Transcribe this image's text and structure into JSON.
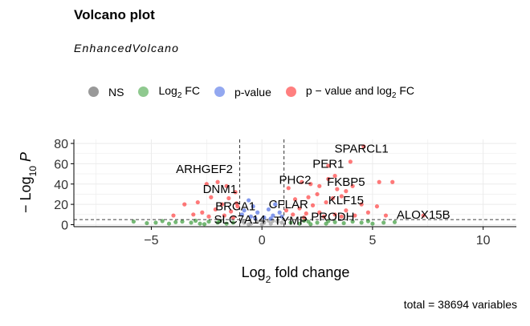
{
  "title": "Volcano plot",
  "subtitle": "EnhancedVolcano",
  "caption": "total = 38694 variables",
  "colors": {
    "ns": "#999999",
    "log2fc": "#3a9a3a",
    "pvalue": "#4f6ee6",
    "both": "#ff2020"
  },
  "chart_data": {
    "type": "scatter",
    "xlabel": "Log2 fold change",
    "ylabel": "-Log10 P",
    "xlim": [
      -8.5,
      11.5
    ],
    "ylim": [
      -2,
      84
    ],
    "x_ticks": [
      -5,
      0,
      5,
      10
    ],
    "y_ticks": [
      0,
      20,
      40,
      60,
      80
    ],
    "grid": true,
    "legend_position": "top",
    "fc_cutoff": 1,
    "p_cutoff_log10": 5,
    "legend": [
      {
        "key": "ns",
        "label": "NS"
      },
      {
        "key": "log2fc",
        "label_main": "Log",
        "label_sub": "2",
        "label_tail": " FC"
      },
      {
        "key": "pvalue",
        "label": "p-value"
      },
      {
        "key": "both",
        "label_main": "p − value and log",
        "label_sub": "2",
        "label_tail": " FC"
      }
    ],
    "labeled_genes": [
      {
        "gene": "SPARCL1",
        "x": 4.5,
        "y": 75
      },
      {
        "gene": "PER1",
        "x": 3.0,
        "y": 60
      },
      {
        "gene": "ARHGEF2",
        "x": -2.6,
        "y": 55
      },
      {
        "gene": "PHC2",
        "x": 1.5,
        "y": 44
      },
      {
        "gene": "FKBP5",
        "x": 3.8,
        "y": 42
      },
      {
        "gene": "DNM1",
        "x": -1.9,
        "y": 35
      },
      {
        "gene": "KLF15",
        "x": 3.8,
        "y": 24
      },
      {
        "gene": "CFLAR",
        "x": 1.2,
        "y": 20
      },
      {
        "gene": "BRCA1",
        "x": -1.2,
        "y": 18
      },
      {
        "gene": "ALOX15B",
        "x": 7.3,
        "y": 10
      },
      {
        "gene": "PRODH",
        "x": 3.2,
        "y": 8
      },
      {
        "gene": "SLC7A14",
        "x": -1.0,
        "y": 5
      },
      {
        "gene": "TYMP",
        "x": 1.3,
        "y": 4
      }
    ],
    "points": {
      "both": [
        [
          4.6,
          77
        ],
        [
          4.0,
          62
        ],
        [
          3.0,
          58
        ],
        [
          3.3,
          48
        ],
        [
          3.0,
          45
        ],
        [
          2.2,
          40
        ],
        [
          1.8,
          42
        ],
        [
          2.6,
          38
        ],
        [
          3.4,
          35
        ],
        [
          5.3,
          42
        ],
        [
          5.9,
          42
        ],
        [
          4.1,
          38
        ],
        [
          3.8,
          33
        ],
        [
          3.6,
          28
        ],
        [
          3.2,
          26
        ],
        [
          2.5,
          30
        ],
        [
          2.1,
          27
        ],
        [
          1.5,
          25
        ],
        [
          2.9,
          22
        ],
        [
          4.5,
          20
        ],
        [
          5.2,
          18
        ],
        [
          2.3,
          19
        ],
        [
          1.7,
          16
        ],
        [
          3.8,
          14
        ],
        [
          4.8,
          12
        ],
        [
          2.6,
          12
        ],
        [
          3.3,
          10
        ],
        [
          2.0,
          11
        ],
        [
          1.4,
          10
        ],
        [
          4.2,
          9
        ],
        [
          5.6,
          9
        ],
        [
          3.6,
          8
        ],
        [
          2.8,
          8
        ],
        [
          1.9,
          7
        ],
        [
          7.3,
          9
        ],
        [
          -2.5,
          40
        ],
        [
          -2.0,
          42
        ],
        [
          -1.6,
          38
        ],
        [
          -1.2,
          32
        ],
        [
          -1.5,
          26
        ],
        [
          -2.3,
          27
        ],
        [
          -2.9,
          22
        ],
        [
          -1.8,
          20
        ],
        [
          -1.1,
          18
        ],
        [
          -3.5,
          20
        ],
        [
          -2.1,
          15
        ],
        [
          -1.4,
          13
        ],
        [
          -2.7,
          12
        ],
        [
          -3.1,
          10
        ],
        [
          -1.7,
          9
        ],
        [
          -2.4,
          8
        ],
        [
          -1.3,
          7
        ],
        [
          -4.0,
          9
        ],
        [
          1.2,
          36
        ],
        [
          1.1,
          14
        ],
        [
          -1.15,
          21
        ]
      ],
      "pvalue": [
        [
          -0.6,
          24
        ],
        [
          -0.4,
          18
        ],
        [
          -0.8,
          14
        ],
        [
          -0.2,
          12
        ],
        [
          0.3,
          15
        ],
        [
          0.6,
          20
        ],
        [
          0.8,
          12
        ],
        [
          0.5,
          9
        ],
        [
          -0.5,
          8
        ],
        [
          0.1,
          7
        ],
        [
          -0.9,
          10
        ],
        [
          0.9,
          8
        ],
        [
          0.4,
          6
        ],
        [
          -0.3,
          6
        ]
      ],
      "log2fc": [
        [
          -5.8,
          3
        ],
        [
          -4.8,
          2
        ],
        [
          -4.2,
          1
        ],
        [
          -3.6,
          3
        ],
        [
          -3.2,
          2
        ],
        [
          -2.8,
          1
        ],
        [
          -2.4,
          3
        ],
        [
          -2.0,
          2
        ],
        [
          -1.6,
          1
        ],
        [
          -1.3,
          2
        ],
        [
          -4.5,
          3.5
        ],
        [
          -5.2,
          1.5
        ],
        [
          -3.9,
          2.5
        ],
        [
          -2.6,
          0.5
        ],
        [
          1.3,
          2
        ],
        [
          1.7,
          1
        ],
        [
          2.1,
          3
        ],
        [
          2.5,
          2
        ],
        [
          2.9,
          1
        ],
        [
          3.3,
          2.5
        ],
        [
          3.7,
          1.5
        ],
        [
          4.1,
          3
        ],
        [
          4.5,
          2
        ],
        [
          5.0,
          1
        ],
        [
          5.5,
          2
        ],
        [
          6.0,
          2.5
        ],
        [
          3.0,
          3.5
        ],
        [
          2.2,
          0.5
        ],
        [
          4.8,
          3.4
        ],
        [
          1.9,
          3.8
        ],
        [
          -1.9,
          3.6
        ],
        [
          -3.0,
          3.8
        ]
      ],
      "ns": [
        [
          -0.8,
          2
        ],
        [
          -0.5,
          1
        ],
        [
          -0.2,
          3
        ],
        [
          0.1,
          2
        ],
        [
          0.4,
          1
        ],
        [
          0.7,
          3
        ],
        [
          0.9,
          2
        ],
        [
          -0.9,
          3.5
        ],
        [
          0.0,
          0.5
        ],
        [
          0.5,
          3.8
        ],
        [
          -0.6,
          0.3
        ],
        [
          0.3,
          4
        ]
      ]
    }
  }
}
